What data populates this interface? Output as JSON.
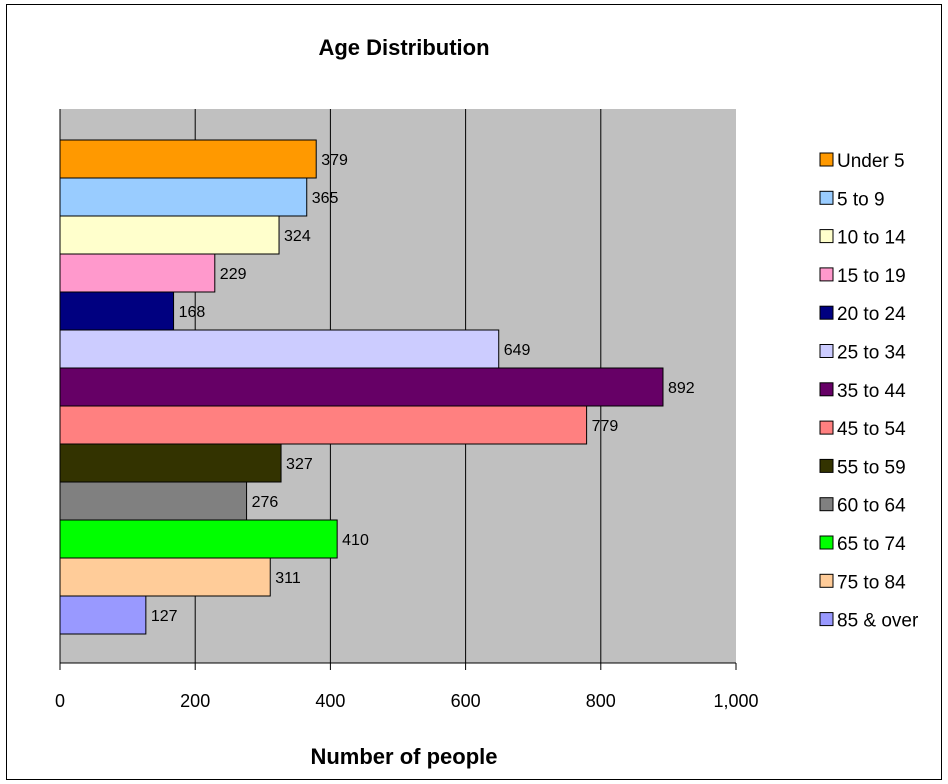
{
  "chart_data": {
    "type": "bar",
    "orientation": "horizontal",
    "title": "Age Distribution",
    "xlabel": "Number of people",
    "ylabel": "",
    "xlim": [
      0,
      1000
    ],
    "x_ticks": [
      "0",
      "200",
      "400",
      "600",
      "800",
      "1,000"
    ],
    "grid": "vertical major gridlines",
    "legend_position": "right",
    "plot_background": "#C0C0C0",
    "categories": [
      "Under 5",
      "5 to 9",
      "10 to 14",
      "15 to 19",
      "20 to 24",
      "25 to 34",
      "35 to 44",
      "45 to 54",
      "55 to 59",
      "60 to 64",
      "65 to 74",
      "75 to 84",
      "85 & over"
    ],
    "values": [
      379,
      365,
      324,
      229,
      168,
      649,
      892,
      779,
      327,
      276,
      410,
      311,
      127
    ],
    "colors": [
      "#FF9900",
      "#99CCFF",
      "#FFFFCC",
      "#FF99CC",
      "#000080",
      "#CCCCFF",
      "#660066",
      "#FF8080",
      "#333300",
      "#808080",
      "#00FF00",
      "#FFCC99",
      "#9999FF"
    ]
  }
}
